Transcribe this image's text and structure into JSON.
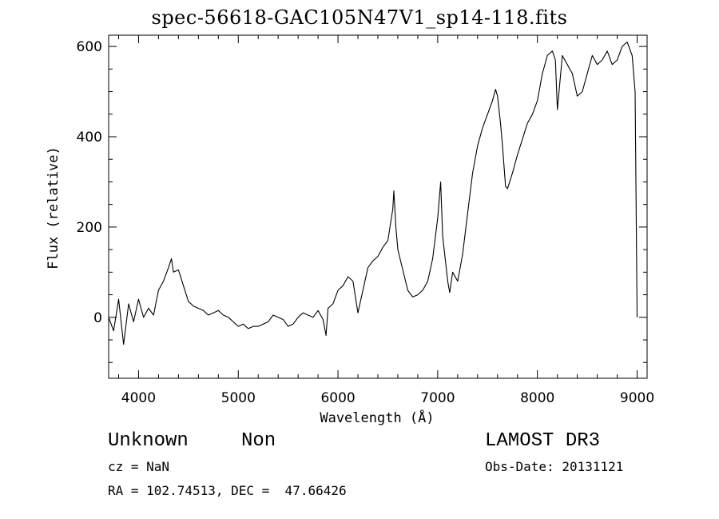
{
  "chart_data": {
    "type": "line",
    "title": "spec-56618-GAC105N47V1_sp14-118.fits",
    "xlabel": "Wavelength (Å)",
    "ylabel": "Flux (relative)",
    "xlim": [
      3700,
      9100
    ],
    "ylim": [
      -135,
      625
    ],
    "xticks": [
      4000,
      5000,
      6000,
      7000,
      8000,
      9000
    ],
    "yticks": [
      0,
      200,
      400,
      600
    ],
    "grid": false,
    "series": [
      {
        "x": [
          3700,
          3750,
          3800,
          3850,
          3900,
          3950,
          4000,
          4050,
          4100,
          4150,
          4200,
          4250,
          4300,
          4330,
          4350,
          4400,
          4450,
          4500,
          4550,
          4600,
          4650,
          4700,
          4750,
          4800,
          4850,
          4900,
          4950,
          5000,
          5050,
          5100,
          5150,
          5200,
          5250,
          5300,
          5350,
          5400,
          5450,
          5500,
          5550,
          5600,
          5650,
          5700,
          5750,
          5800,
          5850,
          5880,
          5900,
          5950,
          6000,
          6050,
          6100,
          6150,
          6200,
          6250,
          6300,
          6350,
          6400,
          6450,
          6500,
          6550,
          6560,
          6580,
          6600,
          6650,
          6700,
          6750,
          6800,
          6850,
          6900,
          6950,
          7000,
          7030,
          7050,
          7080,
          7100,
          7120,
          7150,
          7200,
          7250,
          7300,
          7350,
          7400,
          7450,
          7500,
          7550,
          7580,
          7600,
          7630,
          7650,
          7680,
          7700,
          7750,
          7800,
          7850,
          7900,
          7950,
          8000,
          8050,
          8100,
          8150,
          8180,
          8200,
          8250,
          8300,
          8350,
          8400,
          8450,
          8500,
          8550,
          8600,
          8650,
          8700,
          8750,
          8800,
          8850,
          8900,
          8950,
          8980,
          9000
        ],
        "y": [
          0,
          -30,
          40,
          -60,
          30,
          -10,
          40,
          0,
          20,
          5,
          60,
          80,
          110,
          130,
          100,
          105,
          70,
          35,
          25,
          20,
          15,
          5,
          10,
          15,
          5,
          0,
          -10,
          -20,
          -15,
          -25,
          -20,
          -20,
          -15,
          -10,
          5,
          0,
          -5,
          -20,
          -15,
          0,
          10,
          5,
          0,
          15,
          -5,
          -40,
          20,
          30,
          60,
          70,
          90,
          80,
          10,
          60,
          110,
          125,
          135,
          155,
          170,
          240,
          280,
          200,
          150,
          105,
          60,
          45,
          50,
          60,
          80,
          130,
          220,
          300,
          180,
          120,
          80,
          55,
          100,
          80,
          140,
          230,
          320,
          380,
          420,
          450,
          480,
          505,
          490,
          430,
          380,
          290,
          285,
          320,
          360,
          395,
          430,
          450,
          480,
          540,
          580,
          590,
          570,
          460,
          580,
          560,
          540,
          490,
          500,
          540,
          580,
          560,
          570,
          590,
          560,
          570,
          600,
          610,
          580,
          500,
          0
        ]
      }
    ]
  },
  "info": {
    "object_class": "Unknown",
    "object_subclass": "Non",
    "survey": "LAMOST DR3",
    "cz": "cz = NaN",
    "obs_date": "Obs-Date: 20131121",
    "radec": "RA = 102.74513, DEC =  47.66426"
  }
}
